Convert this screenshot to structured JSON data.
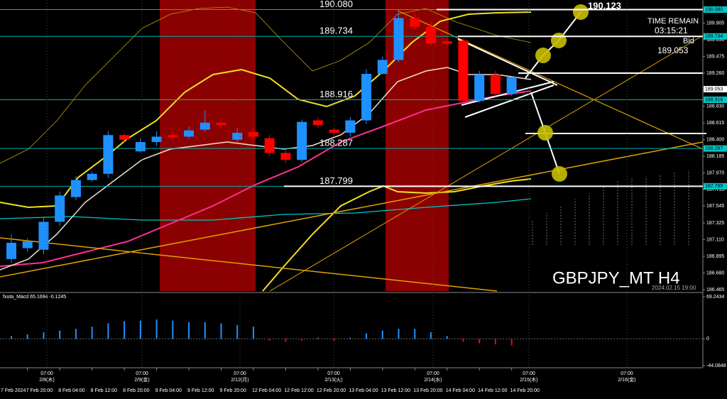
{
  "chart_data": {
    "type": "candlestick",
    "symbol_label": "GBPJPY_MT H4",
    "time_label": "2024.02.15 19:00",
    "axis_start_label": "7 Feb 2024",
    "categories": [
      null,
      "7 Feb 20:00",
      null,
      "8 Feb 04:00",
      null,
      "8 Feb 12:00",
      null,
      "8 Feb 20:00",
      null,
      "9 Feb 04:00",
      null,
      "9 Feb 12:00",
      null,
      "9 Feb 20:00",
      null,
      "12 Feb 04:00",
      null,
      "12 Feb 12:00",
      null,
      "12 Feb 20:00",
      null,
      "13 Feb 04:00",
      null,
      "13 Feb 12:00",
      null,
      "13 Feb 20:00",
      null,
      "14 Feb 04:00",
      null,
      "14 Feb 12:00",
      null,
      "14 Feb 20:00"
    ],
    "open": [
      186.86,
      187.0,
      186.98,
      187.34,
      187.66,
      187.88,
      187.96,
      188.46,
      188.25,
      188.37,
      188.46,
      188.44,
      188.53,
      188.62,
      188.4,
      188.5,
      188.42,
      188.23,
      188.14,
      188.65,
      188.53,
      188.49,
      188.65,
      189.25,
      189.43,
      189.97,
      189.86,
      189.67,
      189.68,
      188.9,
      189.24,
      188.99
    ],
    "high": [
      187.18,
      187.13,
      187.41,
      187.73,
      187.93,
      187.99,
      188.51,
      188.48,
      188.42,
      188.51,
      188.51,
      188.57,
      188.78,
      188.65,
      188.55,
      188.55,
      188.46,
      188.28,
      188.66,
      188.69,
      188.55,
      188.69,
      189.31,
      189.47,
      190.04,
      190.04,
      189.93,
      189.7,
      189.7,
      189.29,
      189.29,
      189.21
    ],
    "low": [
      186.81,
      186.95,
      186.92,
      187.29,
      187.62,
      187.86,
      187.91,
      188.37,
      188.23,
      188.32,
      188.39,
      188.41,
      188.5,
      188.55,
      188.37,
      188.39,
      188.19,
      188.1,
      188.11,
      188.55,
      188.46,
      188.44,
      188.6,
      189.24,
      189.4,
      189.82,
      189.61,
      189.61,
      188.88,
      188.88,
      188.96,
      188.97
    ],
    "close": [
      187.07,
      187.09,
      187.34,
      187.68,
      187.88,
      187.96,
      188.46,
      188.4,
      188.37,
      188.44,
      188.43,
      188.52,
      188.62,
      188.59,
      188.49,
      188.44,
      188.23,
      188.14,
      188.63,
      188.59,
      188.49,
      188.65,
      189.25,
      189.43,
      189.97,
      189.86,
      189.64,
      189.64,
      188.9,
      189.24,
      188.99,
      189.21
    ],
    "up_color": "#1e90ff",
    "down_color": "#ff0000",
    "ylim": [
      186.446,
      190.158
    ],
    "yticks": [
      189.905,
      {
        "value": 189.69,
        "label": "189.690"
      },
      189.475,
      {
        "value": 189.26,
        "label": "189.260"
      },
      {
        "value": 188.83,
        "label": "188.830"
      },
      188.615,
      {
        "value": 188.4,
        "label": "188.400"
      },
      188.185,
      {
        "value": 187.97,
        "label": "187.970"
      },
      187.755,
      187.545,
      187.325,
      {
        "value": 187.11,
        "label": "187.110"
      },
      186.895,
      {
        "value": 186.68,
        "label": "186.680"
      },
      186.465
    ],
    "levels": [
      {
        "value": 190.08,
        "label": "190.080"
      },
      {
        "value": 189.734,
        "label": "189.734"
      },
      {
        "value": 188.916,
        "label": "188.916"
      },
      {
        "value": 188.287,
        "label": "188.287"
      },
      {
        "value": 187.799,
        "label": "187.799"
      }
    ],
    "target": {
      "value": 190.123,
      "label": "190.123"
    },
    "time_remain_title": "TIME REMAIN",
    "time_remain": "03:15:21",
    "bid_title": "Bid",
    "bid": {
      "value": 189.053,
      "label": "189.053"
    },
    "day_ticks": [
      {
        "time": "07:00",
        "day": "2/8(木)"
      },
      {
        "time": "07:00",
        "day": "2/9(金)"
      },
      {
        "time": "07:00",
        "day": "2/12(月)"
      },
      {
        "time": "07:00",
        "day": "2/13(火)"
      },
      {
        "time": "07:00",
        "day": "2/14(水)"
      },
      {
        "time": "07:00",
        "day": "2/15(木)"
      },
      {
        "time": "07:00",
        "day": "2/16(金)"
      }
    ],
    "macd": {
      "title": "fxuta_Macd 65.1694 -0.1245",
      "values": [
        4.6,
        7.3,
        10.9,
        13.7,
        16.4,
        20,
        25.5,
        29.1,
        30,
        31.9,
        30,
        27.3,
        27.3,
        25.5,
        22.8,
        20,
        -3,
        -5,
        -3,
        2,
        -3,
        2,
        9.1,
        13.7,
        16.4,
        16.4,
        10.9,
        4.6,
        -4.6,
        -7.3,
        -9.1,
        -10.9
      ],
      "up_color": "#1e90ff",
      "down_color": "#ff0000",
      "ylim": [
        -44.0848,
        69.2434
      ],
      "yticks": [
        69.2434,
        0,
        -44.0848
      ]
    }
  }
}
